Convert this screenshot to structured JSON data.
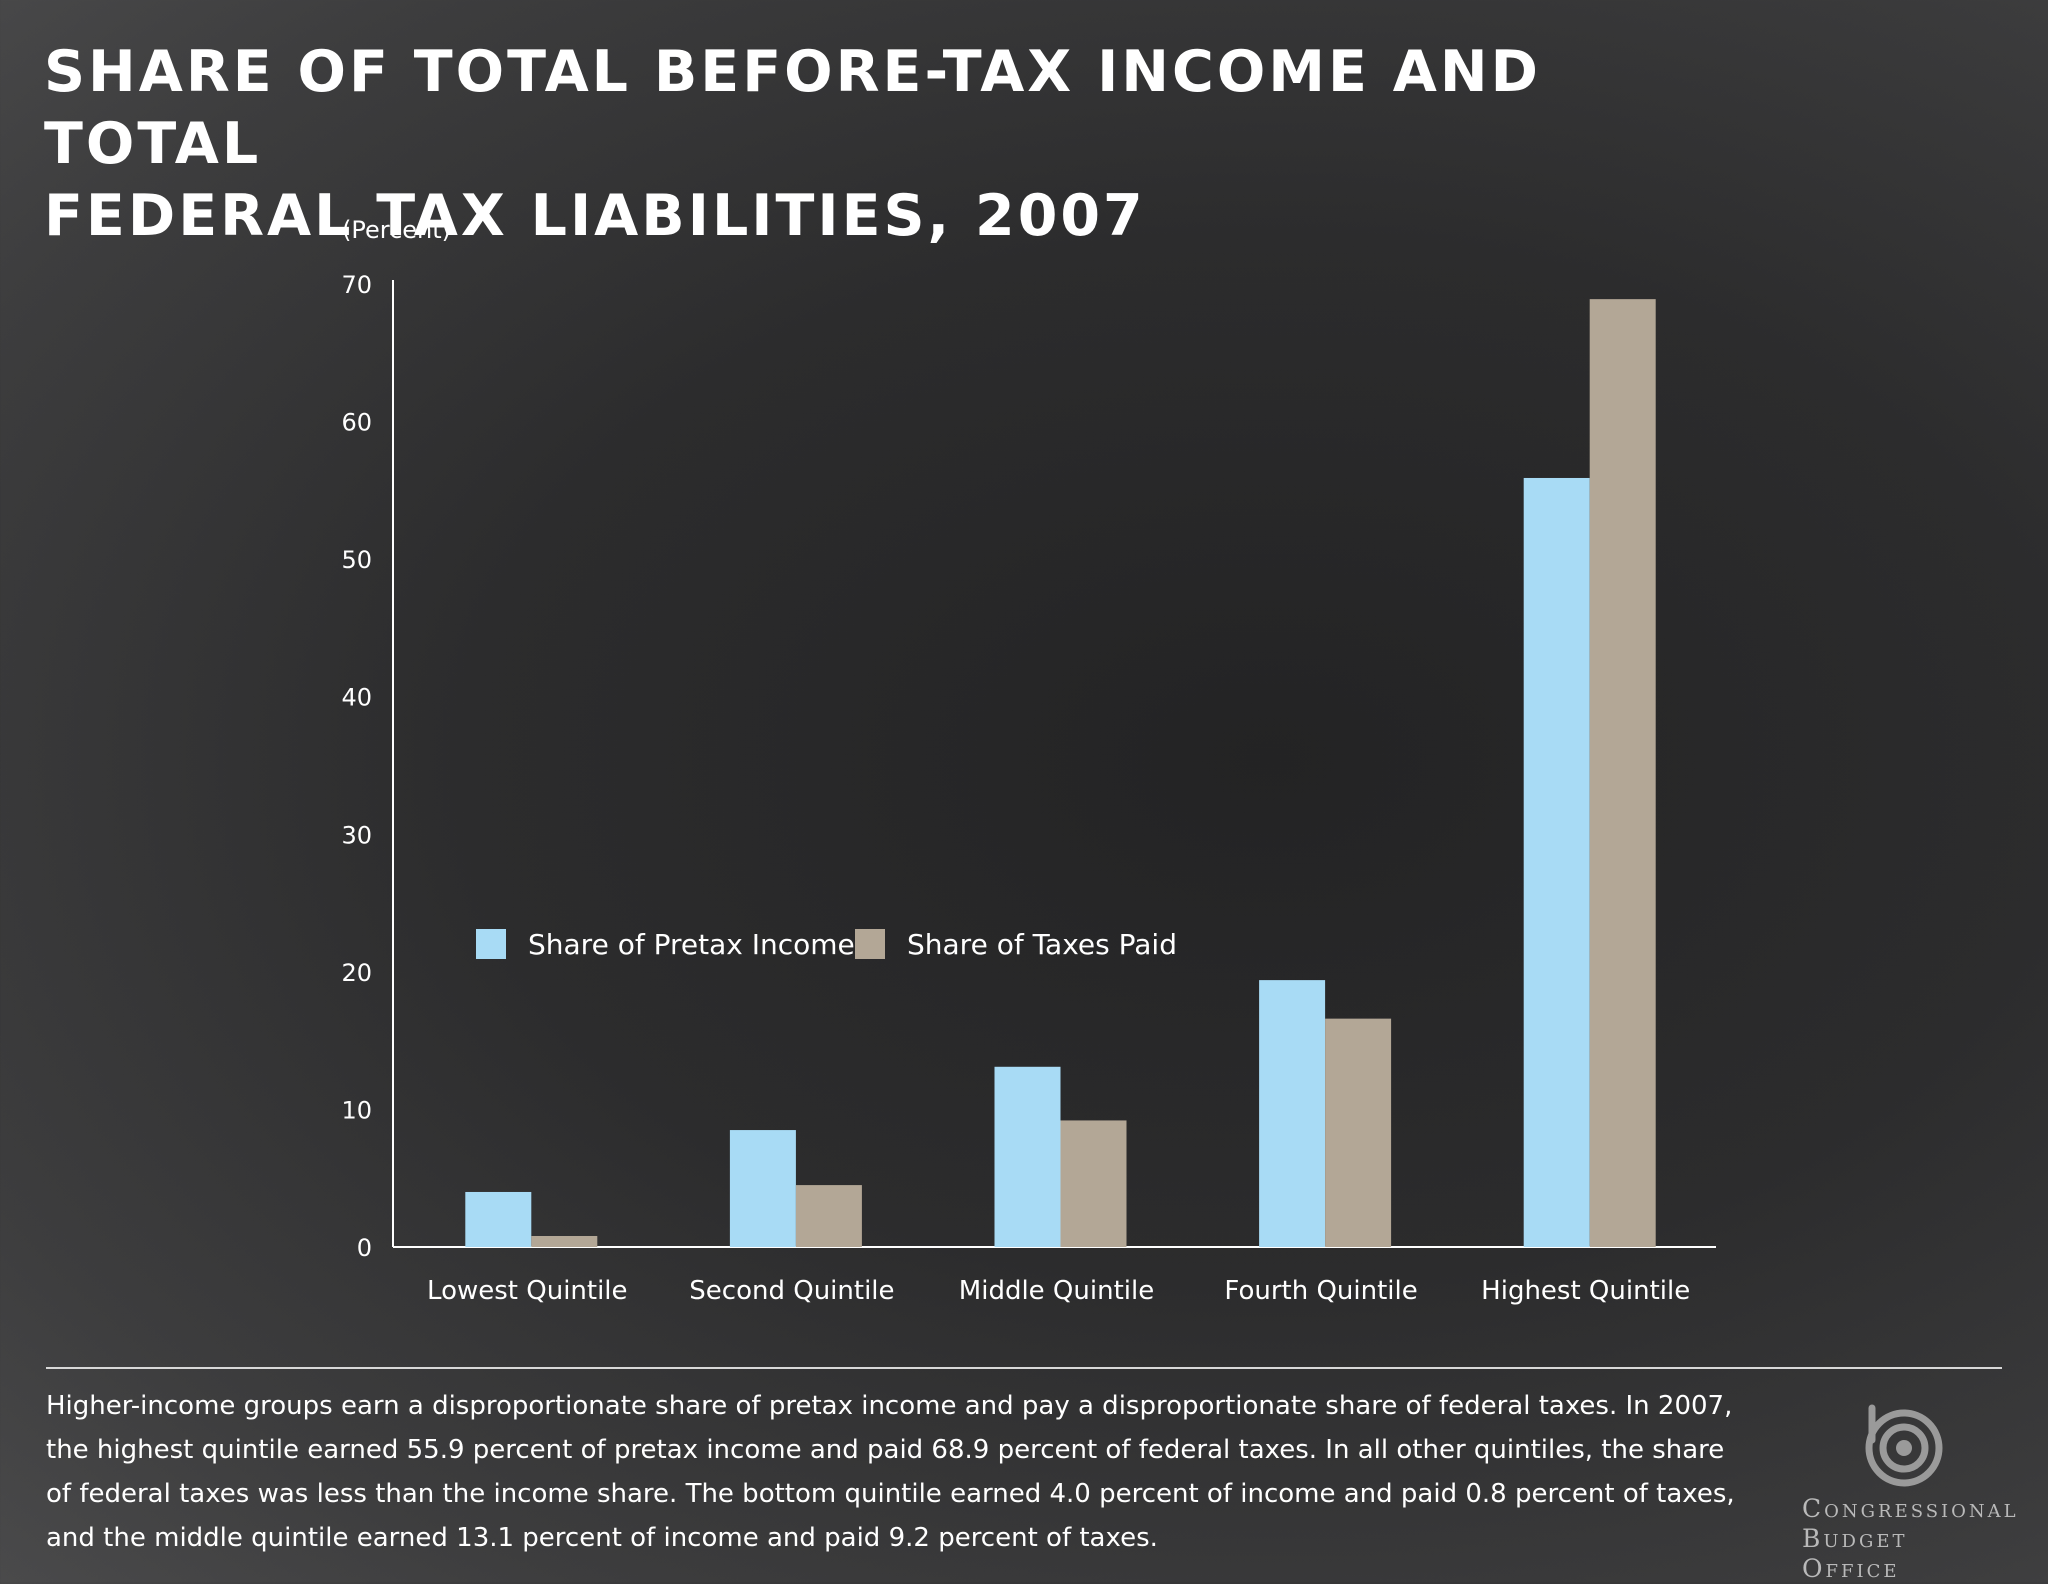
{
  "title": {
    "line1": "SHARE OF TOTAL BEFORE-TAX INCOME AND TOTAL",
    "line2": "FEDERAL TAX LIABILITIES, 2007"
  },
  "chart_data": {
    "type": "bar",
    "title": "SHARE OF TOTAL BEFORE-TAX INCOME AND TOTAL FEDERAL TAX LIABILITIES, 2007",
    "ylabel": "(Percent)",
    "xlabel": "",
    "ylim": [
      0,
      70
    ],
    "yticks": [
      0,
      10,
      20,
      30,
      40,
      50,
      60,
      70
    ],
    "grid": false,
    "legend_position": "center-left",
    "categories": [
      "Lowest Quintile",
      "Second Quintile",
      "Middle Quintile",
      "Fourth Quintile",
      "Highest Quintile"
    ],
    "series": [
      {
        "name": "Share of Pretax Income",
        "color": "#a8dbf5",
        "values": [
          4.0,
          8.5,
          13.1,
          19.4,
          55.9
        ]
      },
      {
        "name": "Share of Taxes Paid",
        "color": "#b3a796",
        "values": [
          0.8,
          4.5,
          9.2,
          16.6,
          68.9
        ]
      }
    ]
  },
  "caption": "Higher-income groups earn a disproportionate share of pretax income and pay a disproportionate share of federal taxes. In 2007, the highest quintile earned 55.9 percent of pretax income and paid 68.9 percent of federal taxes. In all other quintiles, the share of federal taxes was less than the income share. The bottom quintile earned 4.0 percent of income and paid 0.8 percent of taxes, and the middle quintile earned 13.1 percent of income and paid 9.2 percent of taxes.",
  "logo": {
    "line1": "Congressional",
    "line2": "Budget Office",
    "icon": "cbo-logo-icon"
  },
  "colors": {
    "axis": "#ffffff",
    "income": "#a8dbf5",
    "taxes": "#b3a796",
    "logo": "#9a9a9a"
  }
}
